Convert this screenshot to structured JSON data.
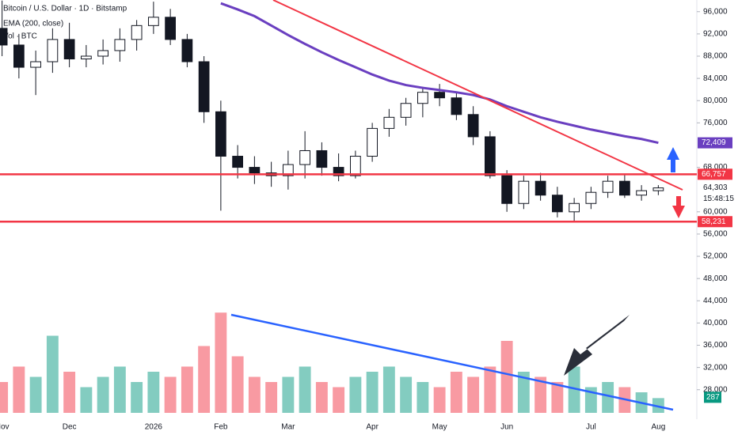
{
  "chart_data": {
    "type": "candlestick",
    "title": "Bitcoin / U.S. Dollar · 1D · Bitstamp",
    "categories": [
      "Nov",
      null,
      null,
      null,
      "Dec",
      null,
      null,
      null,
      null,
      "2026",
      null,
      null,
      null,
      "Feb",
      null,
      null,
      null,
      "Mar",
      null,
      null,
      null,
      null,
      "Apr",
      null,
      null,
      null,
      "May",
      null,
      null,
      null,
      "Jun",
      null,
      null,
      null,
      null,
      "Jul",
      null,
      null,
      null,
      "Aug"
    ],
    "open": [
      93000,
      90000,
      86000,
      87000,
      91000,
      87500,
      88000,
      89000,
      91000,
      93500,
      95000,
      91000,
      87000,
      78000,
      70000,
      68000,
      67000,
      66500,
      68500,
      71000,
      68000,
      66500,
      70000,
      75000,
      77000,
      79500,
      81500,
      80500,
      77500,
      73500,
      66500,
      61500,
      65500,
      63000,
      60000,
      61500,
      63500,
      65500,
      63000,
      63800
    ],
    "high": [
      98000,
      92000,
      89000,
      93000,
      94000,
      90000,
      91000,
      93000,
      94500,
      97800,
      96500,
      92000,
      88000,
      80000,
      72000,
      70000,
      69000,
      71000,
      74500,
      72500,
      70500,
      71000,
      76000,
      78500,
      80500,
      82500,
      83000,
      81500,
      79000,
      74500,
      67500,
      66500,
      67000,
      64500,
      62500,
      64500,
      66500,
      66800,
      64800,
      64800
    ],
    "low": [
      88000,
      84000,
      81000,
      85000,
      86000,
      86000,
      86500,
      87000,
      89000,
      92000,
      90000,
      86000,
      76000,
      60200,
      66000,
      65000,
      64500,
      64000,
      66000,
      66500,
      65500,
      66000,
      69000,
      73500,
      75500,
      77000,
      79000,
      76500,
      72000,
      66000,
      60000,
      60500,
      62000,
      59000,
      58200,
      60500,
      62500,
      62500,
      62000,
      63000
    ],
    "close": [
      90000,
      86000,
      87000,
      91000,
      87500,
      88000,
      89000,
      91000,
      93500,
      95000,
      91000,
      87000,
      78000,
      70000,
      68000,
      67000,
      66500,
      68500,
      71000,
      68000,
      66500,
      70000,
      75000,
      77000,
      79500,
      81500,
      80500,
      77500,
      73500,
      66500,
      61500,
      65500,
      63000,
      60000,
      61500,
      63500,
      65500,
      63000,
      63800,
      64303
    ],
    "up_color": "#089981",
    "down_color": "#f23645",
    "ema": {
      "name": "EMA (200, close)",
      "color": "#6a3fc0",
      "values": [
        null,
        null,
        null,
        null,
        null,
        null,
        null,
        null,
        null,
        null,
        null,
        null,
        null,
        97500,
        96400,
        95200,
        93500,
        91800,
        90200,
        88700,
        87300,
        86000,
        84700,
        83600,
        82800,
        82300,
        81900,
        81500,
        81000,
        80200,
        79000,
        78000,
        77000,
        76200,
        75500,
        74800,
        74200,
        73600,
        73100,
        72409
      ],
      "last_label": "72,409"
    },
    "volume": {
      "name": "Vol · BTC",
      "vlim": [
        0,
        2000
      ],
      "values": [
        600,
        900,
        700,
        1500,
        800,
        500,
        700,
        900,
        600,
        800,
        700,
        900,
        1300,
        1950,
        1100,
        700,
        600,
        700,
        900,
        600,
        500,
        700,
        800,
        900,
        700,
        600,
        500,
        800,
        700,
        900,
        1400,
        800,
        700,
        600,
        900,
        500,
        600,
        500,
        400,
        287
      ]
    },
    "ylim": [
      22700,
      98100
    ],
    "yticks": [
      {
        "value": 96000,
        "label": "96,000"
      },
      {
        "value": 92000,
        "label": "92,000"
      },
      {
        "value": 88000,
        "label": "88,000"
      },
      {
        "value": 84000,
        "label": "84,000"
      },
      {
        "value": 80000,
        "label": "80,000"
      },
      {
        "value": 76000,
        "label": "76,000"
      },
      {
        "value": 68000,
        "label": "68,000"
      },
      {
        "value": 60000,
        "label": "60,000"
      },
      {
        "value": 56000,
        "label": "56,000"
      },
      {
        "value": 52000,
        "label": "52,000"
      },
      {
        "value": 48000,
        "label": "48,000"
      },
      {
        "value": 44000,
        "label": "44,000"
      },
      {
        "value": 40000,
        "label": "40,000"
      },
      {
        "value": 36000,
        "label": "36,000"
      },
      {
        "value": 32000,
        "label": "32,000"
      },
      {
        "value": 28000,
        "label": "28,000"
      }
    ],
    "levels": [
      {
        "value": 66757,
        "label": "66,757",
        "color": "#f23645"
      },
      {
        "value": 58231,
        "label": "58,231",
        "color": "#f23645"
      }
    ],
    "last_price": {
      "value": 64303,
      "label": "64,303"
    },
    "countdown": "15:48:15"
  }
}
